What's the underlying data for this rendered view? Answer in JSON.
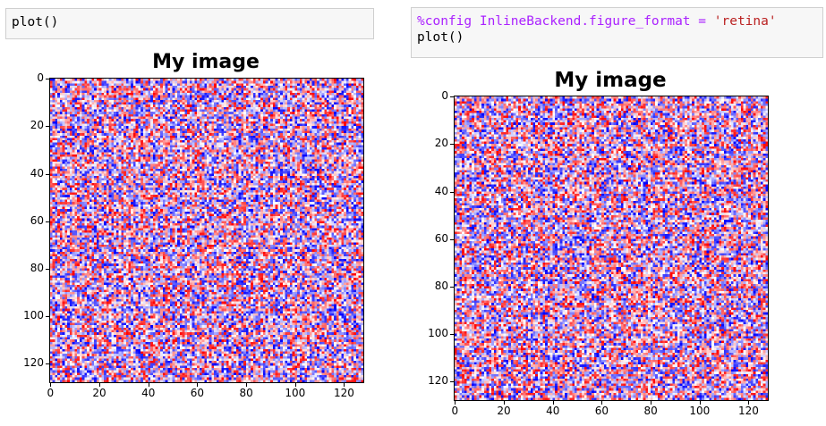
{
  "cells": {
    "left": {
      "code": "plot()"
    },
    "right": {
      "line1_magic": "%config InlineBackend.figure_format",
      "line1_eq": " = ",
      "line1_str": "'retina'",
      "line2": "plot()"
    }
  },
  "figures": {
    "left": {
      "title": "My image"
    },
    "right": {
      "title": "My image"
    }
  },
  "chart_data": [
    {
      "type": "heatmap",
      "title": "My image",
      "image_size": [
        128,
        128
      ],
      "colormap": "bwr",
      "x_ticks": [
        0,
        20,
        40,
        60,
        80,
        100,
        120
      ],
      "y_ticks": [
        0,
        20,
        40,
        60,
        80,
        100,
        120
      ],
      "xlim": [
        0,
        127
      ],
      "ylim": [
        127,
        0
      ],
      "values": "random"
    },
    {
      "type": "heatmap",
      "title": "My image",
      "image_size": [
        128,
        128
      ],
      "colormap": "bwr",
      "x_ticks": [
        0,
        20,
        40,
        60,
        80,
        100,
        120
      ],
      "y_ticks": [
        0,
        20,
        40,
        60,
        80,
        100,
        120
      ],
      "xlim": [
        0,
        127
      ],
      "ylim": [
        127,
        0
      ],
      "values": "random"
    }
  ]
}
